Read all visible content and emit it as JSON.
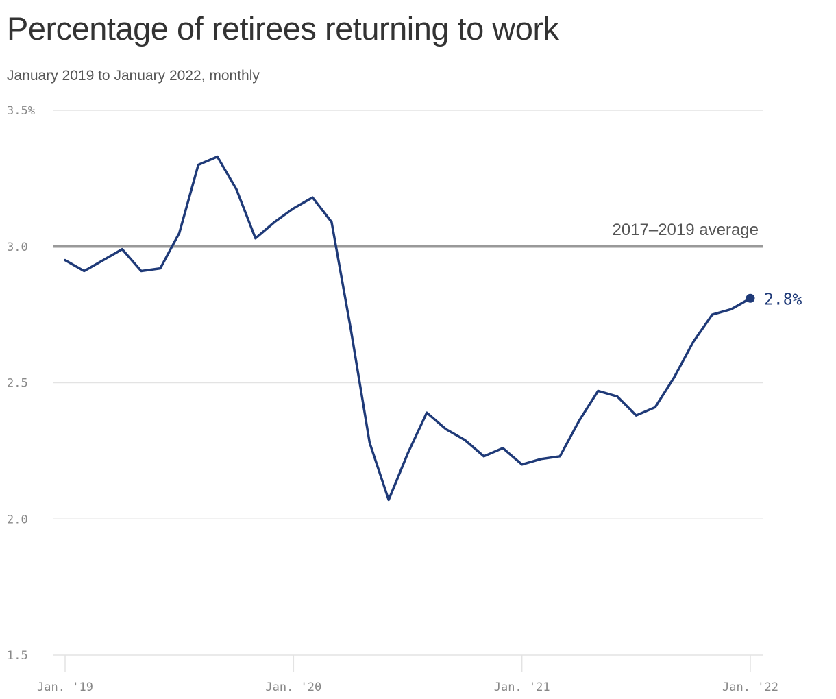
{
  "chart_data": {
    "type": "line",
    "title": "Percentage of retirees returning to work",
    "subtitle": "January 2019 to January 2022, monthly",
    "ylim": [
      1.5,
      3.5
    ],
    "y_ticks": [
      {
        "value": 3.5,
        "label": "3.5%"
      },
      {
        "value": 3.0,
        "label": "3.0"
      },
      {
        "value": 2.5,
        "label": "2.5"
      },
      {
        "value": 2.0,
        "label": "2.0"
      },
      {
        "value": 1.5,
        "label": "1.5"
      }
    ],
    "x_ticks": [
      {
        "date": "2019-01",
        "label": "Jan. '19"
      },
      {
        "date": "2020-01",
        "label": "Jan. '20"
      },
      {
        "date": "2021-01",
        "label": "Jan. '21"
      },
      {
        "date": "2022-01",
        "label": "Jan. '22"
      }
    ],
    "grid": true,
    "series": [
      {
        "color": "#1f3a78",
        "x": [
          "2019-01",
          "2019-02",
          "2019-03",
          "2019-04",
          "2019-05",
          "2019-06",
          "2019-07",
          "2019-08",
          "2019-09",
          "2019-10",
          "2019-11",
          "2019-12",
          "2020-01",
          "2020-02",
          "2020-03",
          "2020-04",
          "2020-05",
          "2020-06",
          "2020-07",
          "2020-08",
          "2020-09",
          "2020-10",
          "2020-11",
          "2020-12",
          "2021-01",
          "2021-02",
          "2021-03",
          "2021-04",
          "2021-05",
          "2021-06",
          "2021-07",
          "2021-08",
          "2021-09",
          "2021-10",
          "2021-11",
          "2021-12",
          "2022-01"
        ],
        "values": [
          2.95,
          2.91,
          2.95,
          2.99,
          2.91,
          2.92,
          3.05,
          3.3,
          3.33,
          3.21,
          3.03,
          3.09,
          3.14,
          3.18,
          3.09,
          2.7,
          2.28,
          2.07,
          2.24,
          2.39,
          2.33,
          2.29,
          2.23,
          2.26,
          2.2,
          2.22,
          2.23,
          2.36,
          2.47,
          2.45,
          2.38,
          2.41,
          2.52,
          2.65,
          2.75,
          2.77,
          2.81
        ]
      }
    ],
    "reference_line": {
      "value": 3.0,
      "label": "2017–2019 average",
      "color": "#999999"
    },
    "end_label": {
      "text": "2.8%",
      "color": "#1f3a78"
    }
  }
}
